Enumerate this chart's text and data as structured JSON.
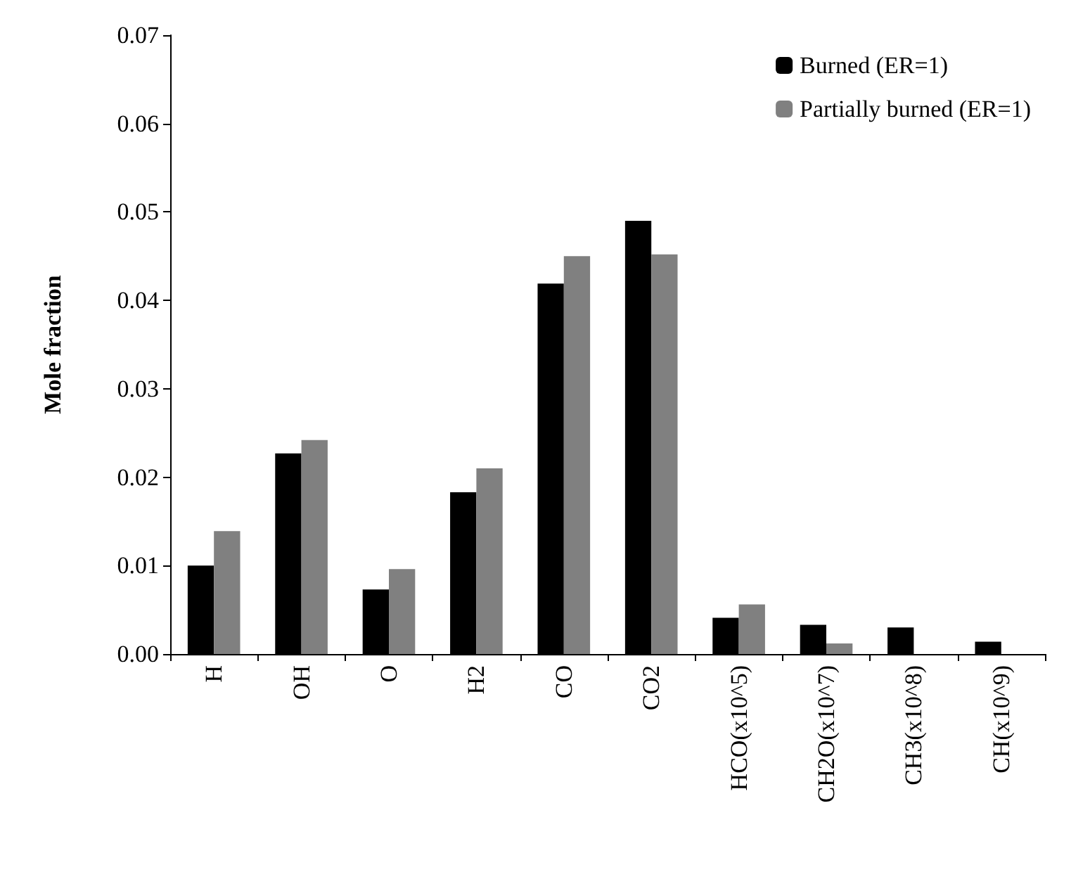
{
  "chart_data": {
    "type": "bar",
    "ylabel": "Mole fraction",
    "categories": [
      "H",
      "OH",
      "O",
      "H2",
      "CO",
      "CO2",
      "HCO(x10^5)",
      "CH2O(x10^7)",
      "CH3(x10^8)",
      "CH(x10^9)"
    ],
    "series": [
      {
        "name": "Burned (ER=1)",
        "color": "#000000",
        "values": [
          0.01,
          0.0227,
          0.0073,
          0.0183,
          0.0419,
          0.049,
          0.0041,
          0.0033,
          0.003,
          0.0014
        ]
      },
      {
        "name": "Partially burned (ER=1)",
        "color": "#808080",
        "values": [
          0.0139,
          0.0242,
          0.0096,
          0.021,
          0.045,
          0.0452,
          0.0056,
          0.0012,
          0,
          0
        ]
      }
    ],
    "ylim": [
      0,
      0.07
    ],
    "yticks": [
      {
        "value": 0,
        "label": "0.00"
      },
      {
        "value": 0.01,
        "label": "0.01"
      },
      {
        "value": 0.02,
        "label": "0.02"
      },
      {
        "value": 0.03,
        "label": "0.03"
      },
      {
        "value": 0.04,
        "label": "0.04"
      },
      {
        "value": 0.05,
        "label": "0.05"
      },
      {
        "value": 0.06,
        "label": "0.06"
      },
      {
        "value": 0.07,
        "label": "0.07"
      }
    ],
    "grid": false,
    "legend": "top right"
  }
}
